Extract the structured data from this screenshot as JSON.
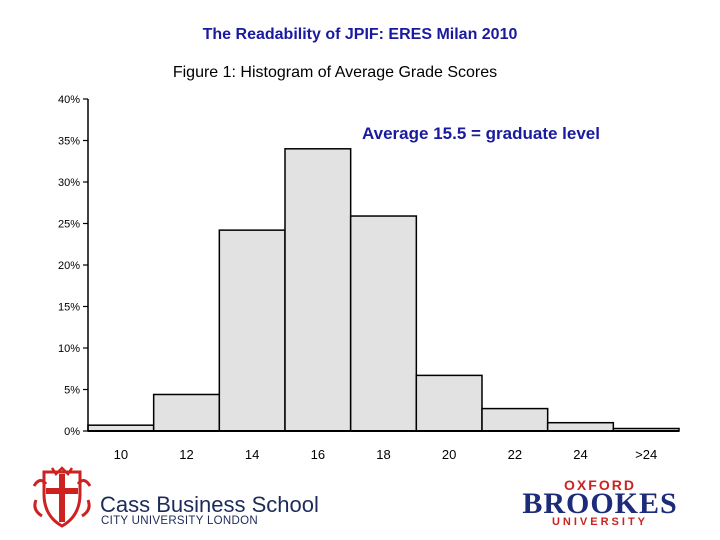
{
  "header": {
    "title": "The Readability of JPIF: ERES Milan 2010",
    "subtitle": "Figure 1: Histogram of Average Grade Scores"
  },
  "annotation": "Average 15.5 =  graduate level",
  "logos": {
    "cass_name": "Cass Business School",
    "cass_sub": "CITY UNIVERSITY LONDON",
    "brookes_top": "OXFORD",
    "brookes_main": "BROOKES",
    "brookes_bottom": "UNIVERSITY"
  },
  "colors": {
    "title": "#1a1aa0",
    "bar_fill": "#e2e2e2",
    "bar_stroke": "#000000",
    "cass_navy": "#1c2b5a",
    "cass_red": "#cc2222"
  },
  "chart_data": {
    "type": "bar",
    "categories": [
      "10",
      "12",
      "14",
      "16",
      "18",
      "20",
      "22",
      "24",
      ">24"
    ],
    "values": [
      0.7,
      4.4,
      24.2,
      34.0,
      25.9,
      6.7,
      2.7,
      1.0,
      0.3
    ],
    "yticks": [
      "0%",
      "5%",
      "10%",
      "15%",
      "20%",
      "25%",
      "30%",
      "35%",
      "40%"
    ],
    "ylim": [
      0,
      40
    ],
    "grid": false,
    "legend": "none"
  }
}
